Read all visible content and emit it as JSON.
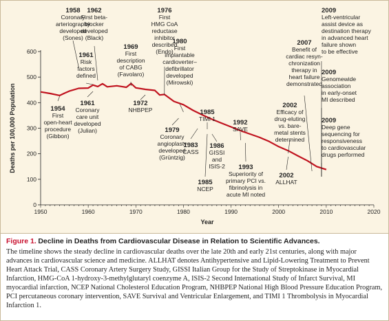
{
  "colors": {
    "line": "#c0121e",
    "marker": "#c0121e",
    "background": "#fbf4e3",
    "caption_label": "#c8102e"
  },
  "chart_data": {
    "type": "line",
    "xlabel": "Year",
    "ylabel": "Deaths per 100,000 Population",
    "xlim": [
      1950,
      2020
    ],
    "ylim": [
      0,
      600
    ],
    "xticks": [
      1950,
      1960,
      1970,
      1980,
      1990,
      2000,
      2010,
      2020
    ],
    "yticks": [
      0,
      100,
      200,
      300,
      400,
      500,
      600
    ],
    "grid": false,
    "series": [
      {
        "x": [
          1950,
          1952,
          1954,
          1955,
          1956,
          1958,
          1960,
          1961,
          1962,
          1963,
          1964,
          1966,
          1968,
          1969,
          1970,
          1972,
          1974,
          1975,
          1976,
          1978,
          1980,
          1982,
          1984,
          1986,
          1988,
          1990,
          1992,
          1994,
          1996,
          1998,
          2000,
          2002,
          2004,
          2006,
          2008,
          2010
        ],
        "y": [
          442,
          436,
          428,
          437,
          445,
          456,
          457,
          469,
          463,
          474,
          462,
          466,
          460,
          475,
          458,
          452,
          448,
          430,
          432,
          405,
          392,
          370,
          352,
          335,
          320,
          305,
          290,
          277,
          264,
          248,
          228,
          212,
          192,
          173,
          150,
          138
        ]
      }
    ]
  },
  "annotations": [
    {
      "year": "1954",
      "lines": [
        "First",
        "open-heart",
        "procedure",
        "(Gibbon)"
      ]
    },
    {
      "year": "1958",
      "lines": [
        "Coronary",
        "arteriography",
        "developed",
        "(Sones)"
      ]
    },
    {
      "year": "1961",
      "lines": [
        "Risk",
        "factors",
        "defined"
      ]
    },
    {
      "year": "1961",
      "lines": [
        "Coronary",
        "care unit",
        "developed",
        "(Julian)"
      ]
    },
    {
      "year": "1962",
      "lines": [
        "First beta-",
        "blocker",
        "developed",
        "(Black)"
      ]
    },
    {
      "year": "1969",
      "lines": [
        "First",
        "description",
        "of CABG",
        "(Favolaro)"
      ]
    },
    {
      "year": "1972",
      "lines": [
        "NHBPEP"
      ]
    },
    {
      "year": "1976",
      "lines": [
        "First",
        "HMG CoA",
        "reductase",
        "inhibitor",
        "described",
        "(Endo)"
      ]
    },
    {
      "year": "1980",
      "lines": [
        "First",
        "implantable",
        "cardioverter–",
        "defibrillator",
        "developed",
        "(Mirowski)"
      ]
    },
    {
      "year": "1979",
      "lines": [
        "Coronary",
        "angioplasty",
        "developed",
        "(Grüntzig)"
      ]
    },
    {
      "year": "1983",
      "lines": [
        "CASS"
      ]
    },
    {
      "year": "1985",
      "lines": [
        "TIMI 1"
      ]
    },
    {
      "year": "1986",
      "lines": [
        "GISSI",
        "and",
        "ISIS-2"
      ]
    },
    {
      "year": "1985",
      "lines": [
        "NCEP"
      ]
    },
    {
      "year": "1992",
      "lines": [
        "SAVE"
      ]
    },
    {
      "year": "1993",
      "lines": [
        "Superiority of",
        "primary PCI vs.",
        "fibrinolysis in",
        "acute MI noted"
      ]
    },
    {
      "year": "2002",
      "lines": [
        "Efficacy of",
        "drug-eluting",
        "vs. bare-",
        "metal stents",
        "determined"
      ]
    },
    {
      "year": "2002",
      "lines": [
        "ALLHAT"
      ]
    },
    {
      "year": "2007",
      "lines": [
        "Benefit of",
        "cardiac resyn-",
        "chronization",
        "therapy in",
        "heart failure",
        "demonstrated"
      ]
    },
    {
      "year": "2009",
      "lines": [
        "Left-ventricular",
        "assist device as",
        "destination therapy",
        "in advanced heart",
        "failure shown",
        "to be effective"
      ]
    },
    {
      "year": "2009",
      "lines": [
        "Genomewide",
        "association",
        "in early-onset",
        "MI described"
      ]
    },
    {
      "year": "2009",
      "lines": [
        "Deep gene",
        "sequencing for",
        "responsiveness",
        "to cardiovascular",
        "drugs performed"
      ]
    }
  ],
  "caption": {
    "label": "Figure 1.",
    "title": "Decline in Deaths from Cardiovascular Disease in Relation to Scientific Advances.",
    "body": "The timeline shows the steady decline in cardiovascular deaths over the late 20th and early 21st centuries, along with major advances in cardiovascular science and medicine. ALLHAT denotes Antihypertensive and Lipid-Lowering Treatment to Prevent Heart Attack Trial, CASS Coronary Artery Surgery Study, GISSI Italian Group for the Study of Streptokinase in Myocardial Infarction, HMG-CoA 1-hydroxy-3-methylglutaryl coenzyme A, ISIS-2 Second International Study of Infarct Survival, MI myocardial infarction, NCEP National Cholesterol Education Program, NHBPEP National High Blood Pressure Education Program, PCI percutaneous coronary intervention, SAVE Survival and Ventricular Enlargement, and TIMI 1 Thrombolysis in Myocardial Infarction 1."
  }
}
